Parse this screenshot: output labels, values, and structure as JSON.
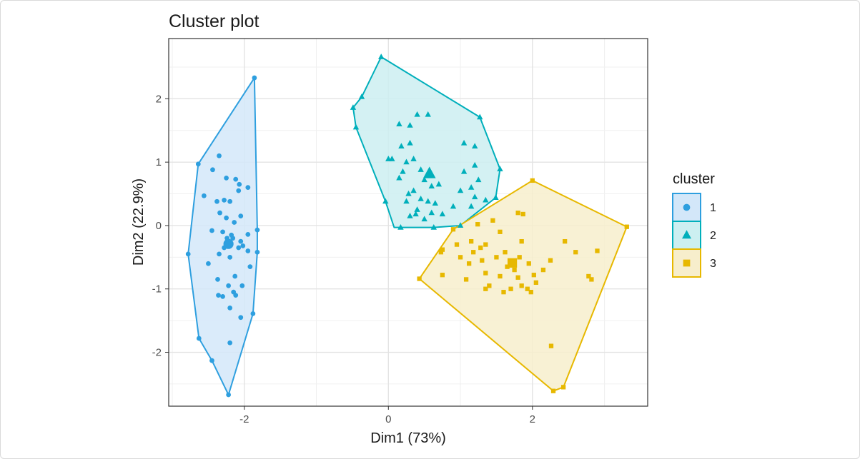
{
  "chart_data": {
    "type": "scatter",
    "title": "Cluster plot",
    "xlabel": "Dim1 (73%)",
    "ylabel": "Dim2 (22.9%)",
    "xlim": [
      -3.05,
      3.6
    ],
    "ylim": [
      -2.85,
      2.95
    ],
    "x_ticks": [
      -2,
      0,
      2
    ],
    "y_ticks": [
      -2,
      -1,
      0,
      1,
      2
    ],
    "grid": true,
    "legend_title": "cluster",
    "legend_position": "right",
    "series": [
      {
        "name": "1",
        "shape": "circle",
        "color": "#2E9FDF",
        "fill": "#D3E7F9",
        "centroid": [
          -2.22,
          -0.29
        ],
        "hull": [
          [
            -1.86,
            2.33
          ],
          [
            -1.82,
            -0.07
          ],
          [
            -1.82,
            -0.42
          ],
          [
            -1.88,
            -1.39
          ],
          [
            -2.22,
            -2.67
          ],
          [
            -2.45,
            -2.13
          ],
          [
            -2.63,
            -1.78
          ],
          [
            -2.78,
            -0.45
          ],
          [
            -2.64,
            0.97
          ]
        ],
        "points": [
          [
            -1.86,
            2.33
          ],
          [
            -2.64,
            0.97
          ],
          [
            -2.78,
            -0.45
          ],
          [
            -2.63,
            -1.78
          ],
          [
            -2.45,
            -2.13
          ],
          [
            -2.22,
            -2.67
          ],
          [
            -1.88,
            -1.39
          ],
          [
            -1.82,
            -0.07
          ],
          [
            -1.82,
            -0.42
          ],
          [
            -2.35,
            1.1
          ],
          [
            -2.44,
            0.88
          ],
          [
            -2.12,
            0.73
          ],
          [
            -2.25,
            0.75
          ],
          [
            -2.07,
            0.65
          ],
          [
            -1.95,
            0.6
          ],
          [
            -2.08,
            0.55
          ],
          [
            -2.56,
            0.47
          ],
          [
            -2.38,
            0.38
          ],
          [
            -2.28,
            0.4
          ],
          [
            -2.2,
            0.38
          ],
          [
            -2.34,
            0.2
          ],
          [
            -2.05,
            0.15
          ],
          [
            -2.25,
            0.12
          ],
          [
            -2.14,
            0.05
          ],
          [
            -2.45,
            -0.08
          ],
          [
            -2.3,
            -0.1
          ],
          [
            -2.18,
            -0.15
          ],
          [
            -2.24,
            -0.2
          ],
          [
            -2.05,
            -0.25
          ],
          [
            -1.95,
            -0.4
          ],
          [
            -2.08,
            -0.35
          ],
          [
            -2.35,
            -0.45
          ],
          [
            -2.5,
            -0.6
          ],
          [
            -2.2,
            -0.5
          ],
          [
            -1.92,
            -0.65
          ],
          [
            -2.13,
            -0.8
          ],
          [
            -2.22,
            -0.95
          ],
          [
            -2.37,
            -0.85
          ],
          [
            -2.03,
            -0.95
          ],
          [
            -2.15,
            -1.05
          ],
          [
            -2.36,
            -1.1
          ],
          [
            -2.3,
            -1.12
          ],
          [
            -2.12,
            -1.1
          ],
          [
            -2.2,
            -1.3
          ],
          [
            -2.05,
            -1.45
          ],
          [
            -2.2,
            -1.85
          ],
          [
            -2.02,
            -0.32
          ],
          [
            -2.28,
            -0.35
          ],
          [
            -2.16,
            -0.2
          ],
          [
            -1.95,
            -0.14
          ]
        ]
      },
      {
        "name": "2",
        "shape": "triangle",
        "color": "#00AFBB",
        "fill": "#CCEFF1",
        "centroid": [
          0.57,
          0.82
        ],
        "hull": [
          [
            -0.1,
            2.66
          ],
          [
            1.27,
            1.71
          ],
          [
            1.55,
            0.89
          ],
          [
            1.49,
            0.44
          ],
          [
            1.0,
            0.0
          ],
          [
            0.63,
            -0.03
          ],
          [
            0.17,
            -0.03
          ],
          [
            0.08,
            -0.03
          ],
          [
            -0.04,
            0.38
          ],
          [
            -0.45,
            1.55
          ],
          [
            -0.49,
            1.86
          ],
          [
            -0.37,
            2.03
          ]
        ],
        "points": [
          [
            -0.1,
            2.66
          ],
          [
            -0.37,
            2.03
          ],
          [
            -0.49,
            1.86
          ],
          [
            -0.45,
            1.55
          ],
          [
            1.27,
            1.71
          ],
          [
            1.55,
            0.89
          ],
          [
            1.49,
            0.44
          ],
          [
            1.0,
            0.0
          ],
          [
            0.63,
            -0.03
          ],
          [
            0.17,
            -0.03
          ],
          [
            -0.04,
            0.38
          ],
          [
            0.0,
            1.05
          ],
          [
            0.05,
            1.05
          ],
          [
            0.15,
            1.6
          ],
          [
            0.3,
            1.58
          ],
          [
            0.4,
            1.75
          ],
          [
            0.55,
            1.75
          ],
          [
            0.3,
            1.3
          ],
          [
            0.18,
            1.25
          ],
          [
            0.25,
            1.0
          ],
          [
            0.35,
            1.05
          ],
          [
            0.2,
            0.85
          ],
          [
            0.15,
            0.75
          ],
          [
            0.45,
            0.88
          ],
          [
            0.5,
            0.72
          ],
          [
            0.6,
            0.62
          ],
          [
            0.7,
            0.65
          ],
          [
            0.35,
            0.55
          ],
          [
            0.28,
            0.5
          ],
          [
            0.25,
            0.38
          ],
          [
            0.45,
            0.42
          ],
          [
            0.55,
            0.38
          ],
          [
            0.65,
            0.35
          ],
          [
            0.4,
            0.25
          ],
          [
            0.6,
            0.2
          ],
          [
            0.75,
            0.18
          ],
          [
            0.9,
            0.3
          ],
          [
            1.0,
            0.55
          ],
          [
            1.05,
            0.85
          ],
          [
            1.05,
            1.3
          ],
          [
            1.2,
            1.25
          ],
          [
            1.2,
            0.95
          ],
          [
            1.25,
            0.72
          ],
          [
            1.15,
            0.6
          ],
          [
            1.2,
            0.45
          ],
          [
            1.35,
            0.4
          ],
          [
            1.15,
            0.3
          ],
          [
            0.3,
            0.15
          ],
          [
            0.38,
            0.18
          ],
          [
            0.5,
            0.1
          ]
        ]
      },
      {
        "name": "3",
        "shape": "square",
        "color": "#E7B800",
        "fill": "#F7EECC",
        "centroid": [
          1.72,
          -0.59
        ],
        "hull": [
          [
            2.0,
            0.71
          ],
          [
            3.31,
            -0.02
          ],
          [
            2.43,
            -2.55
          ],
          [
            2.29,
            -2.61
          ],
          [
            0.43,
            -0.84
          ],
          [
            0.9,
            -0.06
          ]
        ],
        "points": [
          [
            2.0,
            0.71
          ],
          [
            3.31,
            -0.02
          ],
          [
            2.43,
            -2.55
          ],
          [
            2.29,
            -2.61
          ],
          [
            0.43,
            -0.84
          ],
          [
            0.9,
            -0.06
          ],
          [
            1.45,
            0.08
          ],
          [
            1.24,
            0.02
          ],
          [
            1.8,
            0.2
          ],
          [
            1.87,
            0.18
          ],
          [
            1.15,
            -0.25
          ],
          [
            1.35,
            -0.3
          ],
          [
            1.55,
            -0.1
          ],
          [
            1.85,
            -0.25
          ],
          [
            2.45,
            -0.25
          ],
          [
            0.75,
            -0.38
          ],
          [
            1.0,
            -0.5
          ],
          [
            1.12,
            -0.6
          ],
          [
            1.3,
            -0.55
          ],
          [
            1.5,
            -0.5
          ],
          [
            1.65,
            -0.65
          ],
          [
            1.82,
            -0.5
          ],
          [
            1.95,
            -0.6
          ],
          [
            2.25,
            -0.55
          ],
          [
            0.75,
            -0.78
          ],
          [
            1.08,
            -0.85
          ],
          [
            1.35,
            -0.75
          ],
          [
            1.55,
            -0.8
          ],
          [
            1.8,
            -0.82
          ],
          [
            2.05,
            -0.9
          ],
          [
            2.15,
            -0.7
          ],
          [
            2.78,
            -0.8
          ],
          [
            2.82,
            -0.85
          ],
          [
            2.9,
            -0.4
          ],
          [
            1.35,
            -1.0
          ],
          [
            1.6,
            -1.05
          ],
          [
            1.7,
            -1.0
          ],
          [
            1.93,
            -1.0
          ],
          [
            1.98,
            -1.05
          ],
          [
            1.85,
            -0.95
          ],
          [
            2.26,
            -1.9
          ],
          [
            0.73,
            -0.42
          ],
          [
            0.95,
            -0.3
          ],
          [
            1.28,
            -0.35
          ],
          [
            1.62,
            -0.42
          ],
          [
            2.02,
            -0.78
          ],
          [
            2.6,
            -0.42
          ],
          [
            1.18,
            -0.42
          ],
          [
            1.75,
            -0.7
          ],
          [
            1.4,
            -0.95
          ]
        ]
      }
    ]
  }
}
